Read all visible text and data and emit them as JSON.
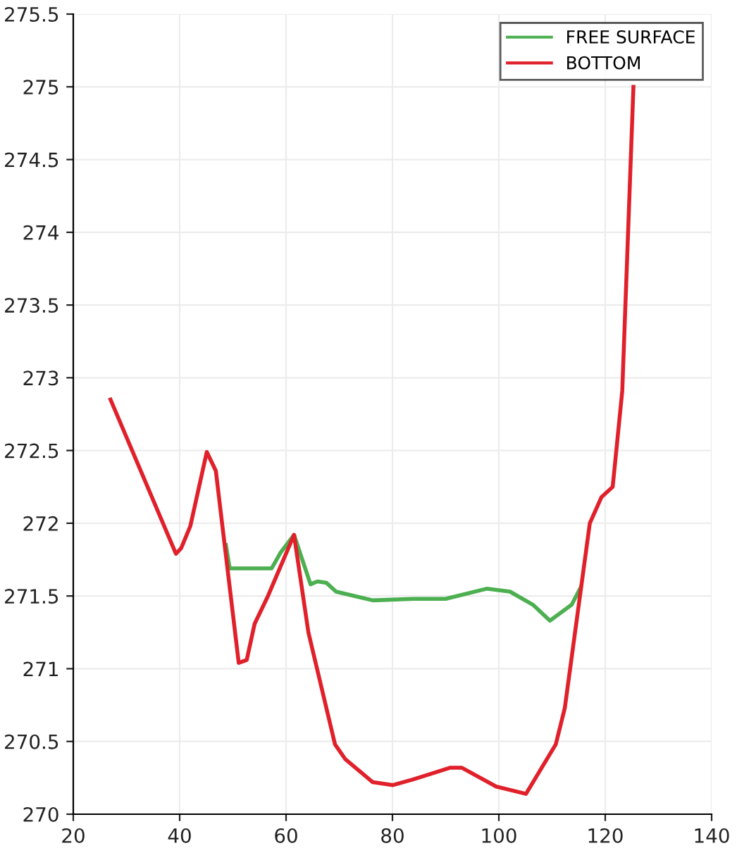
{
  "chart_data": {
    "type": "line",
    "series": [
      {
        "name": "FREE SURFACE",
        "color": "#4caf50",
        "x": [
          48.7,
          49.4,
          57.3,
          59.0,
          61.5,
          64.6,
          65.9,
          67.6,
          69.4,
          76.3,
          84,
          90,
          97.7,
          102.1,
          106.4,
          109.6,
          113.7,
          115.4
        ],
        "values": [
          271.85,
          271.69,
          271.69,
          271.8,
          271.92,
          271.58,
          271.6,
          271.59,
          271.53,
          271.47,
          271.48,
          271.48,
          271.55,
          271.53,
          271.44,
          271.33,
          271.44,
          271.56
        ]
      },
      {
        "name": "BOTTOM",
        "color": "#e0202a",
        "x": [
          27.0,
          39.3,
          40.3,
          42.0,
          45.1,
          46.8,
          51.1,
          52.6,
          54.1,
          56.6,
          61.5,
          64.2,
          69.2,
          71.1,
          76.3,
          80.1,
          84,
          90.9,
          93.0,
          99.5,
          105.1,
          110.7,
          112.4,
          117.1,
          119.3,
          121.4,
          123.2,
          125.3
        ],
        "values": [
          272.85,
          271.79,
          271.83,
          271.98,
          272.49,
          272.36,
          271.04,
          271.06,
          271.31,
          271.5,
          271.92,
          271.25,
          270.48,
          270.38,
          270.22,
          270.2,
          270.24,
          270.32,
          270.32,
          270.19,
          270.14,
          270.48,
          270.73,
          272.0,
          272.18,
          272.25,
          272.91,
          275.0
        ]
      }
    ],
    "xlim": [
      20,
      140
    ],
    "xticks": [
      20,
      40,
      60,
      80,
      100,
      120,
      140
    ],
    "ylim": [
      270,
      275.5
    ],
    "yticks": [
      270,
      270.5,
      271,
      271.5,
      272,
      272.5,
      273,
      273.5,
      274,
      274.5,
      275,
      275.5
    ],
    "grid": true,
    "legend": "top right",
    "line_style": "solid",
    "marker": "none"
  }
}
